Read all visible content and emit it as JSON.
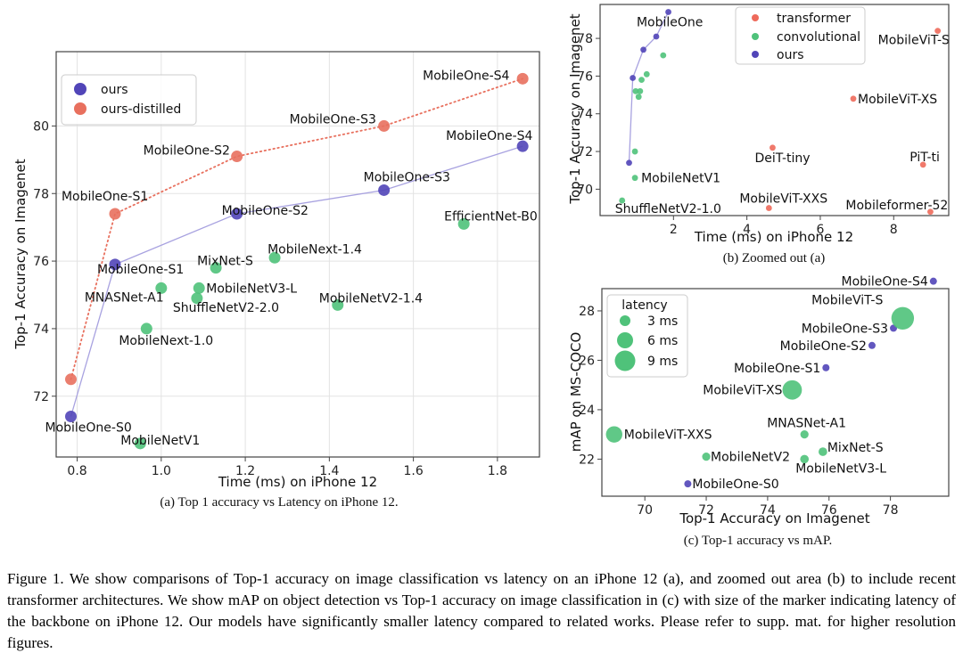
{
  "colors": {
    "ours": "#5145b8",
    "distilled": "#e8705e",
    "transformer": "#ee6a5b",
    "convolutional": "#4fc27a",
    "latency": "#4fc27a",
    "frame": "#444444",
    "grid": "#e3e3e3"
  },
  "chart_data": [
    {
      "id": "a",
      "type": "scatter",
      "subcaption": "(a) Top 1 accuracy vs Latency on iPhone 12.",
      "xlabel": "Time (ms) on iPhone 12",
      "ylabel": "Top-1 Accuracy on Imagenet",
      "xlim": [
        0.75,
        1.9
      ],
      "ylim": [
        70.2,
        82.2
      ],
      "xticks": [
        0.8,
        1.0,
        1.2,
        1.4,
        1.6,
        1.8
      ],
      "xtick_labels": [
        "0.8",
        "1.0",
        "1.2",
        "1.4",
        "1.6",
        "1.8"
      ],
      "yticks": [
        72,
        74,
        76,
        78,
        80
      ],
      "ytick_labels": [
        "72",
        "74",
        "76",
        "78",
        "80"
      ],
      "grid": true,
      "legend_position": "upper-left",
      "legend": [
        {
          "label": "ours",
          "color_key": "ours"
        },
        {
          "label": "ours-distilled",
          "color_key": "distilled"
        }
      ],
      "series": [
        {
          "name": "ours",
          "color_key": "ours",
          "connect": "solid",
          "points": [
            {
              "label": "MobileOne-S0",
              "x": 0.785,
              "y": 71.4
            },
            {
              "label": "MobileOne-S1",
              "x": 0.89,
              "y": 75.9
            },
            {
              "label": "MobileOne-S2",
              "x": 1.18,
              "y": 77.4
            },
            {
              "label": "MobileOne-S3",
              "x": 1.53,
              "y": 78.1
            },
            {
              "label": "MobileOne-S4",
              "x": 1.86,
              "y": 79.4
            }
          ]
        },
        {
          "name": "ours-distilled",
          "color_key": "distilled",
          "connect": "dotted",
          "points": [
            {
              "label": "",
              "x": 0.785,
              "y": 72.5
            },
            {
              "label": "MobileOne-S1",
              "x": 0.89,
              "y": 77.4
            },
            {
              "label": "MobileOne-S2",
              "x": 1.18,
              "y": 79.1
            },
            {
              "label": "MobileOne-S3",
              "x": 1.53,
              "y": 80.0
            },
            {
              "label": "MobileOne-S4",
              "x": 1.86,
              "y": 81.4
            }
          ]
        },
        {
          "name": "other",
          "color_key": "convolutional",
          "connect": "none",
          "points": [
            {
              "label": "MobileNetV1",
              "x": 0.95,
              "y": 70.6
            },
            {
              "label": "MobileNext-1.0",
              "x": 0.965,
              "y": 74.0
            },
            {
              "label": "MNASNet-A1",
              "x": 1.0,
              "y": 75.2
            },
            {
              "label": "ShuffleNetV2-2.0",
              "x": 1.085,
              "y": 74.9
            },
            {
              "label": "MobileNetV3-L",
              "x": 1.09,
              "y": 75.2
            },
            {
              "label": "MixNet-S",
              "x": 1.13,
              "y": 75.8
            },
            {
              "label": "MobileNext-1.4",
              "x": 1.27,
              "y": 76.1
            },
            {
              "label": "MobileNetV2-1.4",
              "x": 1.42,
              "y": 74.7
            },
            {
              "label": "EfficientNet-B0",
              "x": 1.72,
              "y": 77.1
            }
          ]
        }
      ]
    },
    {
      "id": "b",
      "type": "scatter",
      "subcaption": "(b) Zoomed out (a)",
      "xlabel": "Time (ms) on iPhone 12",
      "ylabel": "Top-1 Accuracy on Imagenet",
      "xlim": [
        0.0,
        9.5
      ],
      "ylim": [
        68.6,
        79.8
      ],
      "xticks": [
        2,
        4,
        6,
        8
      ],
      "xtick_labels": [
        "2",
        "4",
        "6",
        "8"
      ],
      "yticks": [
        70,
        72,
        74,
        76,
        78
      ],
      "ytick_labels": [
        "70",
        "72",
        "74",
        "76",
        "78"
      ],
      "grid": false,
      "legend_position": "upper-center",
      "legend": [
        {
          "label": "transformer",
          "color_key": "transformer"
        },
        {
          "label": "convolutional",
          "color_key": "convolutional"
        },
        {
          "label": "ours",
          "color_key": "ours"
        }
      ],
      "series": [
        {
          "name": "ours",
          "color_key": "ours",
          "connect": "solid",
          "points": [
            {
              "label": "",
              "x": 0.79,
              "y": 71.4
            },
            {
              "label": "",
              "x": 0.89,
              "y": 75.9
            },
            {
              "label": "",
              "x": 1.18,
              "y": 77.4
            },
            {
              "label": "",
              "x": 1.53,
              "y": 78.1
            },
            {
              "label": "",
              "x": 1.86,
              "y": 79.4
            }
          ]
        },
        {
          "name": "convolutional",
          "color_key": "convolutional",
          "connect": "none",
          "points": [
            {
              "label": "",
              "x": 0.95,
              "y": 72.0
            },
            {
              "label": "MobileNetV1",
              "x": 0.95,
              "y": 70.6
            },
            {
              "label": "ShuffleNetV2-1.0",
              "x": 0.6,
              "y": 69.4
            },
            {
              "label": "",
              "x": 0.97,
              "y": 75.2
            },
            {
              "label": "",
              "x": 1.05,
              "y": 74.9
            },
            {
              "label": "",
              "x": 1.09,
              "y": 75.2
            },
            {
              "label": "",
              "x": 1.13,
              "y": 75.8
            },
            {
              "label": "",
              "x": 1.27,
              "y": 76.1
            },
            {
              "label": "",
              "x": 1.72,
              "y": 77.1
            }
          ]
        },
        {
          "name": "transformer",
          "color_key": "transformer",
          "connect": "none",
          "points": [
            {
              "label": "MobileViT-S",
              "x": 9.2,
              "y": 78.4
            },
            {
              "label": "MobileViT-XS",
              "x": 6.9,
              "y": 74.8
            },
            {
              "label": "DeiT-tiny",
              "x": 4.7,
              "y": 72.2
            },
            {
              "label": "PiT-ti",
              "x": 8.8,
              "y": 71.3
            },
            {
              "label": "MobileViT-XXS",
              "x": 4.6,
              "y": 69.0
            },
            {
              "label": "Mobileformer-52",
              "x": 9.0,
              "y": 68.8
            }
          ]
        }
      ],
      "extra_labels": [
        {
          "label": "MobileOne",
          "x": 1.9,
          "y": 78.65
        }
      ]
    },
    {
      "id": "c",
      "type": "scatter",
      "subcaption": "(c) Top-1 accuracy vs mAP.",
      "xlabel": "Top-1 Accuracy on Imagenet",
      "ylabel": "mAP on MS-COCO",
      "xlim": [
        68.6,
        79.9
      ],
      "ylim": [
        20.5,
        28.9
      ],
      "xticks": [
        70,
        72,
        74,
        76,
        78
      ],
      "xtick_labels": [
        "70",
        "72",
        "74",
        "76",
        "78"
      ],
      "yticks": [
        22,
        24,
        26,
        28
      ],
      "ytick_labels": [
        "22",
        "24",
        "26",
        "28"
      ],
      "grid": false,
      "legend_position": "upper-left",
      "legend_title": "latency",
      "legend": [
        {
          "label": "3 ms",
          "latency": 3
        },
        {
          "label": "6 ms",
          "latency": 6
        },
        {
          "label": "9 ms",
          "latency": 9
        }
      ],
      "series": [
        {
          "name": "ours",
          "color_key": "ours",
          "connect": "none",
          "points": [
            {
              "label": "MobileOne-S0",
              "x": 71.4,
              "y": 21.0,
              "latency": 0.79
            },
            {
              "label": "MobileOne-S1",
              "x": 75.9,
              "y": 25.7,
              "latency": 0.89
            },
            {
              "label": "MobileOne-S2",
              "x": 77.4,
              "y": 26.6,
              "latency": 1.18
            },
            {
              "label": "MobileOne-S3",
              "x": 78.1,
              "y": 27.3,
              "latency": 1.53
            },
            {
              "label": "MobileOne-S4",
              "x": 79.4,
              "y": 29.2,
              "latency": 1.86
            }
          ]
        },
        {
          "name": "other",
          "color_key": "latency",
          "connect": "none",
          "points": [
            {
              "label": "MobileViT-S",
              "x": 78.4,
              "y": 27.7,
              "latency": 7.6
            },
            {
              "label": "MobileViT-XS",
              "x": 74.8,
              "y": 24.8,
              "latency": 5.6
            },
            {
              "label": "MobileViT-XXS",
              "x": 69.0,
              "y": 23.0,
              "latency": 4.0
            },
            {
              "label": "MNASNet-A1",
              "x": 75.2,
              "y": 23.0,
              "latency": 1.0
            },
            {
              "label": "MixNet-S",
              "x": 75.8,
              "y": 22.3,
              "latency": 1.1
            },
            {
              "label": "MobileNetV3-L",
              "x": 75.2,
              "y": 22.0,
              "latency": 1.1
            },
            {
              "label": "MobileNetV2",
              "x": 72.0,
              "y": 22.1,
              "latency": 0.9
            }
          ]
        }
      ]
    }
  ],
  "caption": "Figure 1. We show comparisons of Top-1 accuracy on image classification vs latency on an iPhone 12 (a), and zoomed out area (b) to include recent transformer architectures. We show mAP on object detection vs Top-1 accuracy on image classification in (c) with size of the marker indicating latency of the backbone on iPhone 12. Our models have significantly smaller latency compared to related works. Please refer to supp. mat. for higher resolution figures."
}
